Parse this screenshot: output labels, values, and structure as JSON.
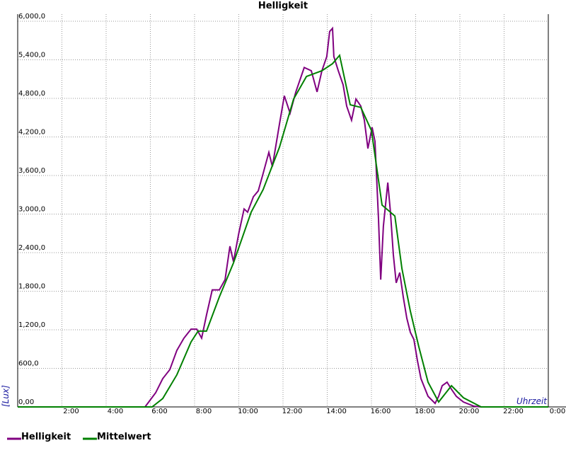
{
  "chart_data": {
    "type": "line",
    "title": "Helligkeit",
    "y_label": "[Lux]",
    "x_label": "Uhrzeit",
    "xlim": [
      0,
      24
    ],
    "ylim": [
      0,
      6000
    ],
    "grid": true,
    "legend": "bottom-left",
    "xticks": [
      {
        "value": 2,
        "label": "2:00"
      },
      {
        "value": 4,
        "label": "4:00"
      },
      {
        "value": 6,
        "label": "6:00"
      },
      {
        "value": 8,
        "label": "8:00"
      },
      {
        "value": 10,
        "label": "10:00"
      },
      {
        "value": 12,
        "label": "12:00"
      },
      {
        "value": 14,
        "label": "14:00"
      },
      {
        "value": 16,
        "label": "16:00"
      },
      {
        "value": 18,
        "label": "18:00"
      },
      {
        "value": 20,
        "label": "20:00"
      },
      {
        "value": 22,
        "label": "22:00"
      },
      {
        "value": 24,
        "label": "0:00"
      }
    ],
    "yticks": [
      {
        "value": 0,
        "label": "0,00"
      },
      {
        "value": 600,
        "label": "600,0"
      },
      {
        "value": 1200,
        "label": "1,200,0"
      },
      {
        "value": 1800,
        "label": "1,800,0"
      },
      {
        "value": 2400,
        "label": "2,400,0"
      },
      {
        "value": 3000,
        "label": "3,000,0"
      },
      {
        "value": 3600,
        "label": "3,600,0"
      },
      {
        "value": 4200,
        "label": "4,200,0"
      },
      {
        "value": 4800,
        "label": "4,800,0"
      },
      {
        "value": 5400,
        "label": "5,400,0"
      },
      {
        "value": 6000,
        "label": "6,000,0"
      }
    ],
    "series": [
      {
        "name": "Helligkeit",
        "color": "#800080",
        "x": [
          0,
          5.76,
          6.24,
          6.56,
          6.88,
          7.2,
          7.52,
          7.84,
          8.1,
          8.32,
          8.54,
          8.8,
          9.12,
          9.38,
          9.6,
          9.76,
          10.0,
          10.24,
          10.4,
          10.66,
          10.88,
          11.1,
          11.36,
          11.52,
          11.84,
          12.06,
          12.32,
          12.58,
          12.8,
          12.96,
          13.28,
          13.54,
          13.76,
          13.98,
          14.11,
          14.24,
          14.3,
          14.5,
          14.72,
          14.88,
          15.1,
          15.3,
          15.52,
          15.68,
          15.84,
          16.03,
          16.16,
          16.32,
          16.42,
          16.54,
          16.74,
          16.86,
          16.99,
          17.12,
          17.28,
          17.44,
          17.6,
          17.76,
          17.92,
          18.08,
          18.24,
          18.56,
          18.88,
          19.04,
          19.2,
          19.42,
          19.62,
          19.84,
          20.16,
          20.64,
          20.96,
          24
        ],
        "values": [
          0,
          0,
          220,
          440,
          580,
          880,
          1070,
          1210,
          1210,
          1070,
          1430,
          1820,
          1820,
          1980,
          2500,
          2260,
          2700,
          3080,
          3030,
          3270,
          3360,
          3630,
          3960,
          3740,
          4400,
          4840,
          4570,
          4900,
          5120,
          5280,
          5230,
          4900,
          5230,
          5450,
          5840,
          5890,
          5450,
          5230,
          5010,
          4680,
          4460,
          4790,
          4680,
          4460,
          4020,
          4350,
          4130,
          2920,
          1980,
          2810,
          3490,
          3030,
          2370,
          1930,
          2090,
          1710,
          1380,
          1160,
          1050,
          720,
          440,
          165,
          55,
          165,
          330,
          385,
          275,
          165,
          77,
          11,
          0,
          0
        ]
      },
      {
        "name": "Mittelwert",
        "color": "#008000",
        "x": [
          0,
          6.08,
          6.56,
          7.2,
          7.84,
          8.16,
          8.54,
          9.12,
          9.76,
          10.56,
          11.1,
          11.84,
          12.48,
          13.06,
          13.76,
          14.24,
          14.56,
          15.04,
          15.52,
          16.0,
          16.48,
          17.06,
          17.38,
          17.76,
          18.14,
          18.56,
          19.04,
          19.62,
          20.16,
          20.96,
          24
        ],
        "values": [
          0,
          0,
          130,
          500,
          1010,
          1180,
          1180,
          1710,
          2240,
          3030,
          3380,
          4040,
          4790,
          5140,
          5230,
          5340,
          5470,
          4700,
          4660,
          4300,
          3140,
          2970,
          2150,
          1490,
          940,
          385,
          77,
          330,
          143,
          0,
          0
        ]
      }
    ]
  }
}
